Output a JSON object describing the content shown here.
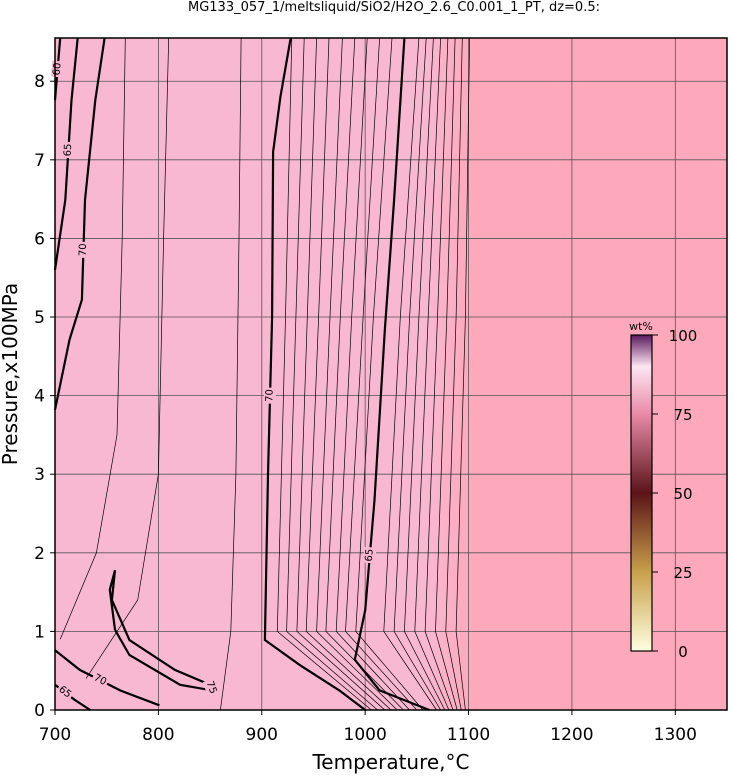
{
  "chart_data": {
    "type": "contour",
    "title": "MG133_057_1/meltsliquid/SiO2/H2O_2.6_C0.001_1_PT, dz=0.5:",
    "x_label": "Temperature,°C",
    "y_label": "Pressure,x100MPa",
    "xlim": [
      700,
      1350
    ],
    "ylim": [
      0,
      8.55
    ],
    "xticks": [
      700,
      800,
      900,
      1000,
      1100,
      1200,
      1300
    ],
    "yticks": [
      0,
      1,
      2,
      3,
      4,
      5,
      6,
      7,
      8
    ],
    "grid": true,
    "fill": [
      "#f9b8d2",
      "#fea9bb"
    ],
    "labeled_contours": [
      {
        "level": 70,
        "x": [
          928,
          918,
          911,
          910,
          906,
          903,
          937,
          975,
          1000
        ],
        "y": [
          8.55,
          7.8,
          7.1,
          5,
          3,
          0.89,
          0.57,
          0.25,
          0
        ]
      },
      {
        "level": 65,
        "x": [
          1038,
          1028,
          1019,
          1009,
          1000,
          990,
          1014,
          1062
        ],
        "y": [
          8.55,
          6.49,
          4.83,
          2.67,
          1.27,
          0.64,
          0.25,
          0
        ]
      },
      {
        "level": 70,
        "x": [
          748,
          739,
          729,
          726,
          714,
          700
        ],
        "y": [
          8.55,
          7.76,
          6.49,
          5.22,
          4.71,
          3.82
        ]
      },
      {
        "level": 65,
        "x": [
          722,
          716,
          710,
          700
        ],
        "y": [
          8.55,
          7.76,
          6.49,
          5.6
        ]
      },
      {
        "level": 60,
        "x": [
          705,
          700
        ],
        "y": [
          8.55,
          7.76
        ]
      },
      {
        "level": 75,
        "x": [
          758,
          755,
          772,
          816,
          850,
          852,
          821,
          772,
          758,
          753,
          758
        ],
        "y": [
          1.78,
          1.4,
          0.89,
          0.51,
          0.32,
          0.25,
          0.32,
          0.7,
          1.02,
          1.53,
          1.78
        ]
      },
      {
        "level": 70,
        "x": [
          700,
          724,
          763,
          801
        ],
        "y": [
          0.76,
          0.51,
          0.25,
          0.06
        ]
      },
      {
        "level": 65,
        "x": [
          700,
          719,
          734
        ],
        "y": [
          0.32,
          0.13,
          0
        ]
      }
    ],
    "contours": [
      {
        "x": [
          1006,
          915,
          923,
          929
        ],
        "y": [
          0,
          1,
          5,
          8.55
        ]
      },
      {
        "x": [
          1012,
          924,
          933,
          941
        ],
        "y": [
          0,
          1,
          5,
          8.55
        ]
      },
      {
        "x": [
          1019,
          934,
          944,
          953
        ],
        "y": [
          0,
          1,
          5,
          8.55
        ]
      },
      {
        "x": [
          1025,
          943,
          955,
          965
        ],
        "y": [
          0,
          1,
          5,
          8.55
        ]
      },
      {
        "x": [
          1031,
          953,
          966,
          978
        ],
        "y": [
          0,
          1,
          5,
          8.55
        ]
      },
      {
        "x": [
          1037,
          962,
          976,
          990
        ],
        "y": [
          0,
          1,
          5,
          8.55
        ]
      },
      {
        "x": [
          1043,
          972,
          987,
          1002
        ],
        "y": [
          0,
          1,
          5,
          8.55
        ]
      },
      {
        "x": [
          1050,
          981,
          998,
          1014
        ],
        "y": [
          0,
          1,
          5,
          8.55
        ]
      },
      {
        "x": [
          1056,
          991,
          1008,
          1026
        ],
        "y": [
          0,
          1,
          5,
          8.55
        ]
      },
      {
        "x": [
          1069,
          1018,
          1034,
          1052
        ],
        "y": [
          0,
          1,
          5,
          8.55
        ]
      },
      {
        "x": [
          1073,
          1028,
          1043,
          1059
        ],
        "y": [
          0,
          1,
          5,
          8.55
        ]
      },
      {
        "x": [
          1077,
          1038,
          1052,
          1066
        ],
        "y": [
          0,
          1,
          5,
          8.55
        ]
      },
      {
        "x": [
          1081,
          1048,
          1061,
          1073
        ],
        "y": [
          0,
          1,
          5,
          8.55
        ]
      },
      {
        "x": [
          1085,
          1058,
          1070,
          1080
        ],
        "y": [
          0,
          1,
          5,
          8.55
        ]
      },
      {
        "x": [
          1089,
          1068,
          1079,
          1087
        ],
        "y": [
          0,
          1,
          5,
          8.55
        ]
      },
      {
        "x": [
          1093,
          1078,
          1088,
          1094
        ],
        "y": [
          0,
          1,
          5,
          8.55
        ]
      },
      {
        "x": [
          1097,
          1088,
          1097,
          1101
        ],
        "y": [
          0,
          1,
          5,
          8.55
        ]
      },
      {
        "x": [
          705,
          740,
          760,
          765,
          768
        ],
        "y": [
          0.9,
          2,
          3.5,
          6,
          8.55
        ]
      },
      {
        "x": [
          730,
          780,
          800,
          805,
          810
        ],
        "y": [
          0.4,
          1.4,
          3,
          6,
          8.55
        ]
      },
      {
        "x": [
          860,
          870,
          875,
          878,
          880
        ],
        "y": [
          0,
          1,
          3,
          6,
          8.55
        ]
      }
    ],
    "colorbar": {
      "label": "wt%",
      "lim": [
        0,
        100
      ],
      "ticks": [
        0,
        25,
        50,
        75,
        100
      ],
      "colormap": [
        {
          "value": 0,
          "color": "#ffffe0"
        },
        {
          "value": 25,
          "color": "#c8a04a"
        },
        {
          "value": 50,
          "color": "#5a1418"
        },
        {
          "value": 75,
          "color": "#e88aa8"
        },
        {
          "value": 90,
          "color": "#fde6f2"
        },
        {
          "value": 100,
          "color": "#5a1a5e"
        }
      ]
    }
  }
}
